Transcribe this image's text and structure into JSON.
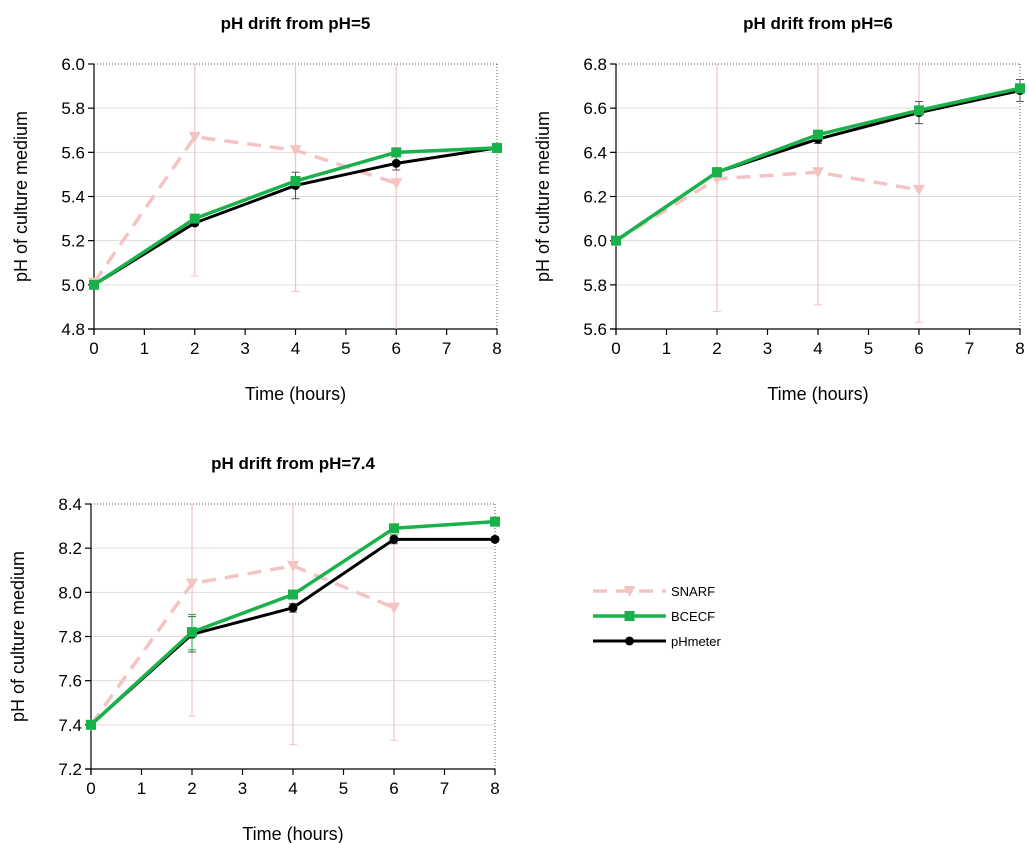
{
  "legend": {
    "placement": "right of bottom-left panel",
    "entries": [
      "SNARF",
      "BCECF",
      "pHmeter"
    ]
  },
  "colors": {
    "SNARF": "#f4c4c4",
    "BCECF": "#19b24a",
    "pHmeter": "#000000",
    "snarf_error": "#f4c4c4",
    "black_error": "#555555",
    "grid": "#dddddd"
  },
  "chart_data": [
    {
      "type": "line",
      "title": "pH drift from pH=5",
      "xlabel": "Time (hours)",
      "ylabel": "pH of culture medium",
      "xlim": [
        0,
        8
      ],
      "ylim": [
        4.8,
        6.0
      ],
      "xticks": [
        "0",
        "1",
        "2",
        "3",
        "4",
        "5",
        "6",
        "7",
        "8"
      ],
      "yticks": [
        "4.8",
        "5.0",
        "5.2",
        "5.4",
        "5.6",
        "5.8",
        "6.0"
      ],
      "grid": true,
      "series": [
        {
          "name": "SNARF",
          "x": [
            0,
            2,
            4,
            6
          ],
          "y": [
            5.01,
            5.67,
            5.61,
            5.46
          ],
          "err": [
            0,
            0.63,
            0.64,
            0.78
          ]
        },
        {
          "name": "BCECF",
          "x": [
            0,
            2,
            4,
            6,
            8
          ],
          "y": [
            5.0,
            5.3,
            5.47,
            5.6,
            5.62
          ],
          "err": [
            0,
            0.01,
            0.02,
            0.01,
            0.02
          ]
        },
        {
          "name": "pHmeter",
          "x": [
            0,
            2,
            4,
            6,
            8
          ],
          "y": [
            5.0,
            5.28,
            5.45,
            5.55,
            5.62
          ],
          "err": [
            0,
            0.01,
            0.06,
            0.03,
            0.02
          ]
        }
      ]
    },
    {
      "type": "line",
      "title": "pH drift from pH=6",
      "xlabel": "Time (hours)",
      "ylabel": "pH of culture medium",
      "xlim": [
        0,
        8
      ],
      "ylim": [
        5.6,
        6.8
      ],
      "xticks": [
        "0",
        "1",
        "2",
        "3",
        "4",
        "5",
        "6",
        "7",
        "8"
      ],
      "yticks": [
        "5.6",
        "5.8",
        "6.0",
        "6.2",
        "6.4",
        "6.6",
        "6.8"
      ],
      "grid": true,
      "series": [
        {
          "name": "SNARF",
          "x": [
            0,
            2,
            4,
            6
          ],
          "y": [
            6.0,
            6.28,
            6.31,
            6.23
          ],
          "err": [
            0,
            0.6,
            0.6,
            0.6
          ]
        },
        {
          "name": "BCECF",
          "x": [
            0,
            2,
            4,
            6,
            8
          ],
          "y": [
            6.0,
            6.31,
            6.48,
            6.59,
            6.69
          ],
          "err": [
            0,
            0.01,
            0.01,
            0.01,
            0.01
          ]
        },
        {
          "name": "pHmeter",
          "x": [
            0,
            2,
            4,
            6,
            8
          ],
          "y": [
            6.0,
            6.31,
            6.46,
            6.58,
            6.68
          ],
          "err": [
            0,
            0.02,
            0.02,
            0.05,
            0.05
          ]
        }
      ]
    },
    {
      "type": "line",
      "title": "pH drift from pH=7.4",
      "xlabel": "Time (hours)",
      "ylabel": "pH of culture medium",
      "xlim": [
        0,
        8
      ],
      "ylim": [
        7.2,
        8.4
      ],
      "xticks": [
        "0",
        "1",
        "2",
        "3",
        "4",
        "5",
        "6",
        "7",
        "8"
      ],
      "yticks": [
        "7.2",
        "7.4",
        "7.6",
        "7.8",
        "8.0",
        "8.2",
        "8.4"
      ],
      "grid": true,
      "series": [
        {
          "name": "SNARF",
          "x": [
            0,
            2,
            4,
            6
          ],
          "y": [
            7.4,
            8.04,
            8.12,
            7.93
          ],
          "err": [
            0,
            0.6,
            0.81,
            0.6
          ]
        },
        {
          "name": "BCECF",
          "x": [
            0,
            2,
            4,
            6,
            8
          ],
          "y": [
            7.4,
            7.82,
            7.99,
            8.29,
            8.32
          ],
          "err": [
            0,
            0.08,
            0.01,
            0.01,
            0.01
          ]
        },
        {
          "name": "pHmeter",
          "x": [
            0,
            2,
            4,
            6,
            8
          ],
          "y": [
            7.4,
            7.81,
            7.93,
            8.24,
            8.24
          ],
          "err": [
            0,
            0.08,
            0.02,
            0.02,
            0.01
          ]
        }
      ]
    }
  ]
}
